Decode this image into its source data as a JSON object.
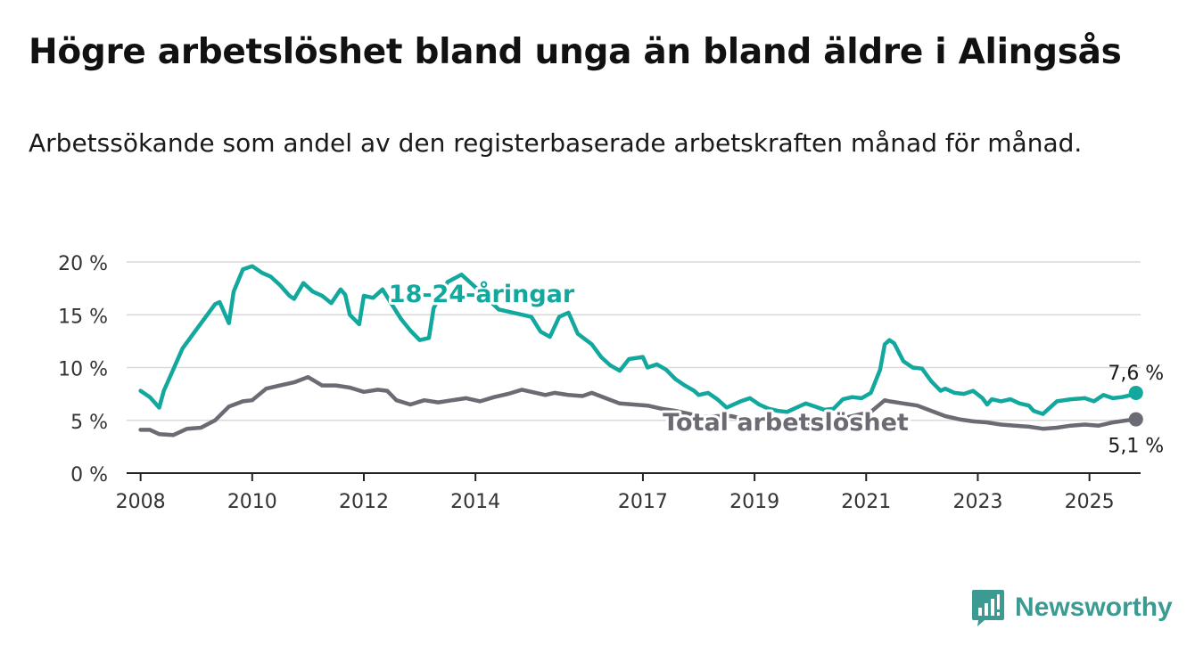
{
  "title": "Högre arbetslöshet bland unga än bland äldre i Alingsås",
  "subtitle": "Arbetssökande som andel av den registerbaserade arbetskraften månad för månad.",
  "brand": {
    "name": "Newsworthy",
    "color": "#3b9b93",
    "icon": "newsworthy-logo-icon"
  },
  "chart_data": {
    "type": "line",
    "x_ticks": [
      "2008",
      "2010",
      "2012",
      "2014",
      "2017",
      "2019",
      "2021",
      "2023",
      "2025"
    ],
    "y_ticks": [
      "0 %",
      "5 %",
      "10 %",
      "15 %",
      "20 %"
    ],
    "ylim": [
      0,
      20
    ],
    "xlim": [
      "2007-10",
      "2025-12"
    ],
    "grid": true,
    "series": [
      {
        "name": "18-24-åringar",
        "color": "#13a89e",
        "end_label": "7,6 %",
        "points": [
          [
            "2008-01",
            7.8
          ],
          [
            "2008-03",
            7.2
          ],
          [
            "2008-05",
            6.2
          ],
          [
            "2008-06",
            7.8
          ],
          [
            "2008-08",
            9.8
          ],
          [
            "2008-10",
            11.8
          ],
          [
            "2009-01",
            13.6
          ],
          [
            "2009-03",
            14.8
          ],
          [
            "2009-05",
            16.0
          ],
          [
            "2009-06",
            16.2
          ],
          [
            "2009-08",
            14.2
          ],
          [
            "2009-09",
            17.2
          ],
          [
            "2009-11",
            19.3
          ],
          [
            "2010-01",
            19.6
          ],
          [
            "2010-03",
            19.0
          ],
          [
            "2010-05",
            18.6
          ],
          [
            "2010-07",
            17.8
          ],
          [
            "2010-09",
            16.8
          ],
          [
            "2010-10",
            16.5
          ],
          [
            "2010-12",
            18.0
          ],
          [
            "2011-02",
            17.2
          ],
          [
            "2011-04",
            16.8
          ],
          [
            "2011-06",
            16.1
          ],
          [
            "2011-08",
            17.4
          ],
          [
            "2011-09",
            16.9
          ],
          [
            "2011-10",
            15.0
          ],
          [
            "2011-12",
            14.1
          ],
          [
            "2012-01",
            16.8
          ],
          [
            "2012-03",
            16.6
          ],
          [
            "2012-05",
            17.4
          ],
          [
            "2012-07",
            16.0
          ],
          [
            "2012-09",
            14.6
          ],
          [
            "2012-11",
            13.5
          ],
          [
            "2013-01",
            12.6
          ],
          [
            "2013-03",
            12.8
          ],
          [
            "2013-04",
            15.6
          ],
          [
            "2013-07",
            18.1
          ],
          [
            "2013-10",
            18.8
          ],
          [
            "2014-02",
            17.2
          ],
          [
            "2014-06",
            15.5
          ],
          [
            "2015-01",
            14.8
          ],
          [
            "2015-03",
            13.4
          ],
          [
            "2015-05",
            12.9
          ],
          [
            "2015-07",
            14.8
          ],
          [
            "2015-09",
            15.2
          ],
          [
            "2015-11",
            13.2
          ],
          [
            "2016-02",
            12.2
          ],
          [
            "2016-04",
            11.0
          ],
          [
            "2016-06",
            10.2
          ],
          [
            "2016-08",
            9.7
          ],
          [
            "2016-10",
            10.8
          ],
          [
            "2017-01",
            11.0
          ],
          [
            "2017-02",
            10.0
          ],
          [
            "2017-04",
            10.3
          ],
          [
            "2017-06",
            9.8
          ],
          [
            "2017-08",
            8.9
          ],
          [
            "2017-10",
            8.3
          ],
          [
            "2017-12",
            7.8
          ],
          [
            "2018-01",
            7.4
          ],
          [
            "2018-03",
            7.6
          ],
          [
            "2018-05",
            7.0
          ],
          [
            "2018-07",
            6.2
          ],
          [
            "2018-09",
            6.6
          ],
          [
            "2018-10",
            6.8
          ],
          [
            "2018-12",
            7.1
          ],
          [
            "2019-02",
            6.5
          ],
          [
            "2019-04",
            6.1
          ],
          [
            "2019-06",
            5.9
          ],
          [
            "2019-08",
            5.8
          ],
          [
            "2019-10",
            6.2
          ],
          [
            "2019-12",
            6.6
          ],
          [
            "2020-02",
            6.3
          ],
          [
            "2020-04",
            6.0
          ],
          [
            "2020-06",
            6.1
          ],
          [
            "2020-08",
            7.0
          ],
          [
            "2020-10",
            7.2
          ],
          [
            "2020-12",
            7.1
          ],
          [
            "2021-02",
            7.6
          ],
          [
            "2021-04",
            9.8
          ],
          [
            "2021-05",
            12.2
          ],
          [
            "2021-06",
            12.6
          ],
          [
            "2021-07",
            12.3
          ],
          [
            "2021-09",
            10.6
          ],
          [
            "2021-11",
            10.0
          ],
          [
            "2022-01",
            9.9
          ],
          [
            "2022-03",
            8.7
          ],
          [
            "2022-05",
            7.8
          ],
          [
            "2022-06",
            8.0
          ],
          [
            "2022-08",
            7.6
          ],
          [
            "2022-10",
            7.5
          ],
          [
            "2022-12",
            7.8
          ],
          [
            "2023-02",
            7.1
          ],
          [
            "2023-03",
            6.5
          ],
          [
            "2023-04",
            7.0
          ],
          [
            "2023-06",
            6.8
          ],
          [
            "2023-08",
            7.0
          ],
          [
            "2023-10",
            6.6
          ],
          [
            "2023-12",
            6.4
          ],
          [
            "2024-01",
            5.9
          ],
          [
            "2024-03",
            5.6
          ],
          [
            "2024-06",
            6.8
          ],
          [
            "2024-09",
            7.0
          ],
          [
            "2024-12",
            7.1
          ],
          [
            "2025-02",
            6.8
          ],
          [
            "2025-04",
            7.4
          ],
          [
            "2025-06",
            7.1
          ],
          [
            "2025-08",
            7.2
          ],
          [
            "2025-10",
            7.4
          ],
          [
            "2025-11",
            7.6
          ]
        ]
      },
      {
        "name": "Total arbetslöshet",
        "color": "#6b6b73",
        "end_label": "5,1 %",
        "points": [
          [
            "2008-01",
            4.1
          ],
          [
            "2008-03",
            4.1
          ],
          [
            "2008-05",
            3.7
          ],
          [
            "2008-08",
            3.6
          ],
          [
            "2008-11",
            4.2
          ],
          [
            "2009-02",
            4.3
          ],
          [
            "2009-05",
            5.0
          ],
          [
            "2009-08",
            6.3
          ],
          [
            "2009-11",
            6.8
          ],
          [
            "2010-01",
            6.9
          ],
          [
            "2010-04",
            8.0
          ],
          [
            "2010-07",
            8.3
          ],
          [
            "2010-10",
            8.6
          ],
          [
            "2011-01",
            9.1
          ],
          [
            "2011-04",
            8.3
          ],
          [
            "2011-07",
            8.3
          ],
          [
            "2011-10",
            8.1
          ],
          [
            "2012-01",
            7.7
          ],
          [
            "2012-04",
            7.9
          ],
          [
            "2012-06",
            7.8
          ],
          [
            "2012-08",
            6.9
          ],
          [
            "2012-11",
            6.5
          ],
          [
            "2013-02",
            6.9
          ],
          [
            "2013-05",
            6.7
          ],
          [
            "2013-08",
            6.9
          ],
          [
            "2013-11",
            7.1
          ],
          [
            "2014-02",
            6.8
          ],
          [
            "2014-05",
            7.2
          ],
          [
            "2014-08",
            7.5
          ],
          [
            "2014-11",
            7.9
          ],
          [
            "2015-02",
            7.6
          ],
          [
            "2015-04",
            7.4
          ],
          [
            "2015-06",
            7.6
          ],
          [
            "2015-09",
            7.4
          ],
          [
            "2015-12",
            7.3
          ],
          [
            "2016-02",
            7.6
          ],
          [
            "2016-05",
            7.1
          ],
          [
            "2016-08",
            6.6
          ],
          [
            "2016-11",
            6.5
          ],
          [
            "2017-02",
            6.4
          ],
          [
            "2017-05",
            6.1
          ],
          [
            "2017-08",
            5.9
          ],
          [
            "2017-11",
            5.6
          ],
          [
            "2018-02",
            5.3
          ],
          [
            "2018-05",
            5.4
          ],
          [
            "2018-08",
            5.4
          ],
          [
            "2018-11",
            5.1
          ],
          [
            "2019-02",
            4.9
          ],
          [
            "2019-05",
            4.9
          ],
          [
            "2019-08",
            4.8
          ],
          [
            "2019-11",
            4.8
          ],
          [
            "2020-02",
            4.7
          ],
          [
            "2020-05",
            4.7
          ],
          [
            "2020-08",
            5.2
          ],
          [
            "2020-11",
            5.5
          ],
          [
            "2021-02",
            5.8
          ],
          [
            "2021-05",
            6.9
          ],
          [
            "2021-06",
            6.8
          ],
          [
            "2021-09",
            6.6
          ],
          [
            "2021-12",
            6.4
          ],
          [
            "2022-03",
            5.9
          ],
          [
            "2022-06",
            5.4
          ],
          [
            "2022-09",
            5.1
          ],
          [
            "2022-12",
            4.9
          ],
          [
            "2023-03",
            4.8
          ],
          [
            "2023-06",
            4.6
          ],
          [
            "2023-09",
            4.5
          ],
          [
            "2023-12",
            4.4
          ],
          [
            "2024-03",
            4.2
          ],
          [
            "2024-06",
            4.3
          ],
          [
            "2024-09",
            4.5
          ],
          [
            "2024-12",
            4.6
          ],
          [
            "2025-03",
            4.5
          ],
          [
            "2025-06",
            4.8
          ],
          [
            "2025-09",
            5.0
          ],
          [
            "2025-11",
            5.1
          ]
        ]
      }
    ]
  }
}
